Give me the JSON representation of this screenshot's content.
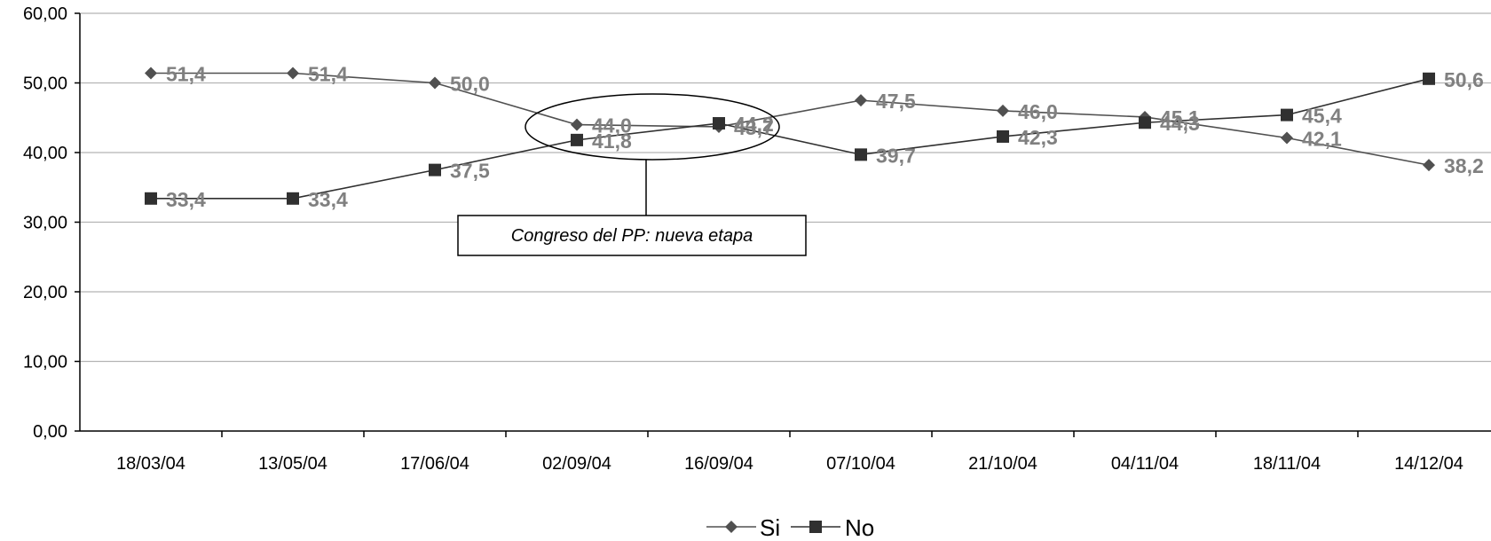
{
  "chart_data": {
    "type": "line",
    "title": "",
    "xlabel": "",
    "ylabel": "",
    "categories": [
      "18/03/04",
      "13/05/04",
      "17/06/04",
      "02/09/04",
      "16/09/04",
      "07/10/04",
      "21/10/04",
      "04/11/04",
      "18/11/04",
      "14/12/04"
    ],
    "series": [
      {
        "name": "Si",
        "values": [
          51.4,
          51.4,
          50.0,
          44.0,
          43.7,
          47.5,
          46.0,
          45.1,
          42.1,
          38.2
        ],
        "labels": [
          "51,4",
          "51,4",
          "50,0",
          "44,0",
          "43,7",
          "47,5",
          "46,0",
          "45,1",
          "42,1",
          "38,2"
        ],
        "marker": "diamond",
        "color": "#505050"
      },
      {
        "name": "No",
        "values": [
          33.4,
          33.4,
          37.5,
          41.8,
          44.2,
          39.7,
          42.3,
          44.3,
          45.4,
          50.6
        ],
        "labels": [
          "33,4",
          "33,4",
          "37,5",
          "41,8",
          "44,2",
          "39,7",
          "42,3",
          "44,3",
          "45,4",
          "50,6"
        ],
        "marker": "square",
        "color": "#303030"
      }
    ],
    "ylim": [
      0,
      60
    ],
    "yticks": [
      "0,00",
      "10,00",
      "20,00",
      "30,00",
      "40,00",
      "50,00",
      "60,00"
    ],
    "grid": true,
    "legend_position": "bottom-center",
    "annotation": {
      "text": "Congreso del PP: nueva etapa"
    }
  }
}
